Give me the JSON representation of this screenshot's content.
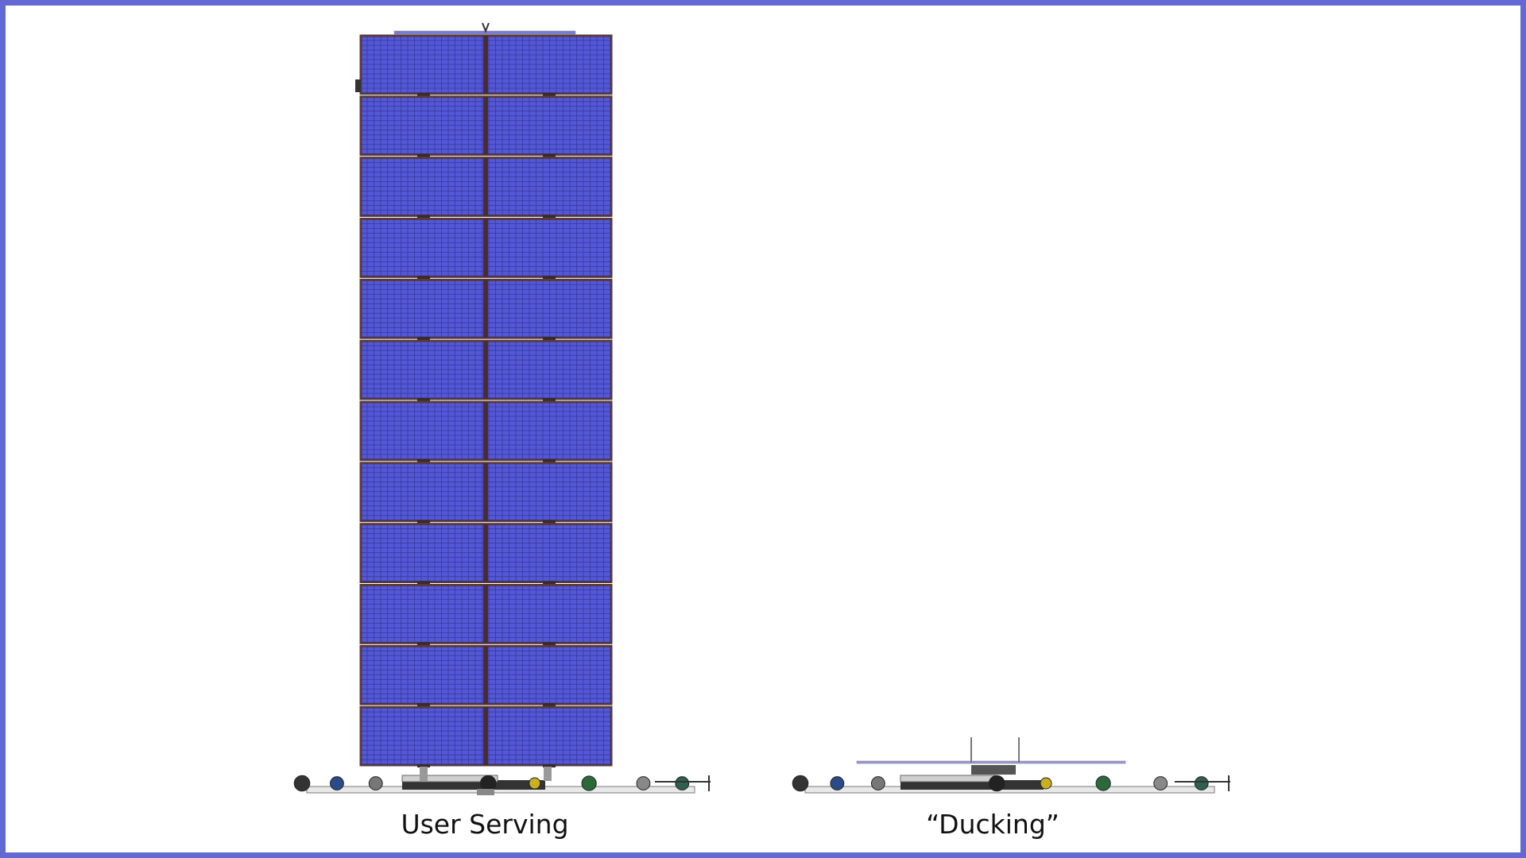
{
  "figures": [
    {
      "label": "User Serving",
      "state": "deployed"
    },
    {
      "label": "“Ducking”",
      "state": "stowed"
    }
  ],
  "colors": {
    "frame": "#6468d2",
    "solar_cell": "#5458d8",
    "panel_frame": "#5a3a3a",
    "grid_line": "#2a2e80"
  },
  "solar_array": {
    "segments": 12
  }
}
